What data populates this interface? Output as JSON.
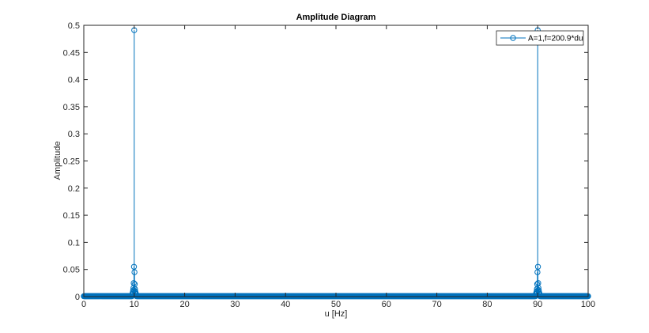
{
  "chart_data": {
    "type": "stem",
    "title": "Amplitude Diagram",
    "xlabel": "u [Hz]",
    "ylabel": "Amplitude",
    "xlim": [
      0,
      100
    ],
    "ylim": [
      0,
      0.5
    ],
    "xticks": [
      "0",
      "10",
      "20",
      "30",
      "40",
      "50",
      "60",
      "70",
      "80",
      "90",
      "100"
    ],
    "yticks": [
      "0",
      "0.05",
      "0.1",
      "0.15",
      "0.2",
      "0.25",
      "0.3",
      "0.35",
      "0.4",
      "0.45",
      "0.5"
    ],
    "grid": false,
    "legend_position": "top-right",
    "color": "#0072BD",
    "series": [
      {
        "name": "A=1,f=200.9*du",
        "du": 0.05,
        "floor_value": 0.0008,
        "peaks": [
          {
            "x": 10.0,
            "y": 0.491
          },
          {
            "x": 9.95,
            "y": 0.055
          },
          {
            "x": 10.05,
            "y": 0.045
          },
          {
            "x": 9.9,
            "y": 0.025
          },
          {
            "x": 10.1,
            "y": 0.023
          },
          {
            "x": 9.85,
            "y": 0.016
          },
          {
            "x": 10.15,
            "y": 0.014
          },
          {
            "x": 9.8,
            "y": 0.012
          },
          {
            "x": 10.2,
            "y": 0.01
          },
          {
            "x": 9.75,
            "y": 0.009
          },
          {
            "x": 10.25,
            "y": 0.008
          },
          {
            "x": 9.7,
            "y": 0.007
          },
          {
            "x": 10.3,
            "y": 0.006
          },
          {
            "x": 9.65,
            "y": 0.005
          },
          {
            "x": 10.35,
            "y": 0.005
          },
          {
            "x": 9.6,
            "y": 0.004
          },
          {
            "x": 10.4,
            "y": 0.004
          },
          {
            "x": 90.0,
            "y": 0.491
          },
          {
            "x": 90.05,
            "y": 0.055
          },
          {
            "x": 89.95,
            "y": 0.045
          },
          {
            "x": 90.1,
            "y": 0.025
          },
          {
            "x": 89.9,
            "y": 0.023
          },
          {
            "x": 90.15,
            "y": 0.016
          },
          {
            "x": 89.85,
            "y": 0.014
          },
          {
            "x": 90.2,
            "y": 0.012
          },
          {
            "x": 89.8,
            "y": 0.01
          },
          {
            "x": 90.25,
            "y": 0.009
          },
          {
            "x": 89.75,
            "y": 0.008
          },
          {
            "x": 90.3,
            "y": 0.007
          },
          {
            "x": 89.7,
            "y": 0.006
          },
          {
            "x": 90.35,
            "y": 0.005
          },
          {
            "x": 89.65,
            "y": 0.005
          },
          {
            "x": 90.4,
            "y": 0.004
          },
          {
            "x": 89.6,
            "y": 0.004
          }
        ]
      }
    ]
  }
}
